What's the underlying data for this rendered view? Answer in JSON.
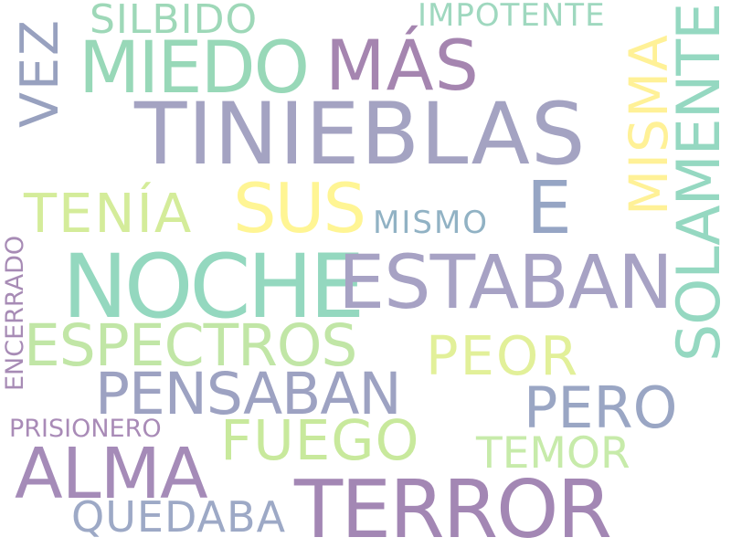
{
  "words": [
    {
      "key": "tinieblas",
      "text": "TINIEBLAS",
      "color": "#a4a3c2"
    },
    {
      "key": "noche",
      "text": "NOCHE",
      "color": "#94d8bf"
    },
    {
      "key": "estaban",
      "text": "ESTABAN",
      "color": "#a7a2c4"
    },
    {
      "key": "terror",
      "text": "TERROR",
      "color": "#a387b4"
    },
    {
      "key": "miedo",
      "text": "MIEDO",
      "color": "#98d8b8"
    },
    {
      "key": "mas",
      "text": "MÁS",
      "color": "#a585b0"
    },
    {
      "key": "alma",
      "text": "ALMA",
      "color": "#a58bb8"
    },
    {
      "key": "espectros",
      "text": "ESPECTROS",
      "color": "#c1e6a6"
    },
    {
      "key": "pensaban",
      "text": "PENSABAN",
      "color": "#9da2c2"
    },
    {
      "key": "sus",
      "text": "SUS",
      "color": "#fff594"
    },
    {
      "key": "e",
      "text": "E",
      "color": "#96a5c4"
    },
    {
      "key": "tenia",
      "text": "TENÍA",
      "color": "#d4ec9a"
    },
    {
      "key": "solamente",
      "text": "SOLAMENTE",
      "color": "#95d8c1"
    },
    {
      "key": "misma",
      "text": "MISMA",
      "color": "#fff197"
    },
    {
      "key": "fuego",
      "text": "FUEGO",
      "color": "#c8e99c"
    },
    {
      "key": "pero",
      "text": "PERO",
      "color": "#9aa6c4"
    },
    {
      "key": "peor",
      "text": "PEOR",
      "color": "#e2f099"
    },
    {
      "key": "vez",
      "text": "VEZ",
      "color": "#98a1bf"
    },
    {
      "key": "quedaba",
      "text": "QUEDABA",
      "color": "#9da9c6"
    },
    {
      "key": "silbido",
      "text": "SILBIDO",
      "color": "#9ed8b8"
    },
    {
      "key": "temor",
      "text": "TEMOR",
      "color": "#c7ebaa"
    },
    {
      "key": "impotente",
      "text": "IMPOTENTE",
      "color": "#9fd8bf"
    },
    {
      "key": "mismo",
      "text": "MISMO",
      "color": "#91b2c4"
    },
    {
      "key": "prisionero",
      "text": "PRISIONERO",
      "color": "#a98bb7"
    },
    {
      "key": "encerrado",
      "text": "ENCERRADO",
      "color": "#a78bb5"
    }
  ]
}
